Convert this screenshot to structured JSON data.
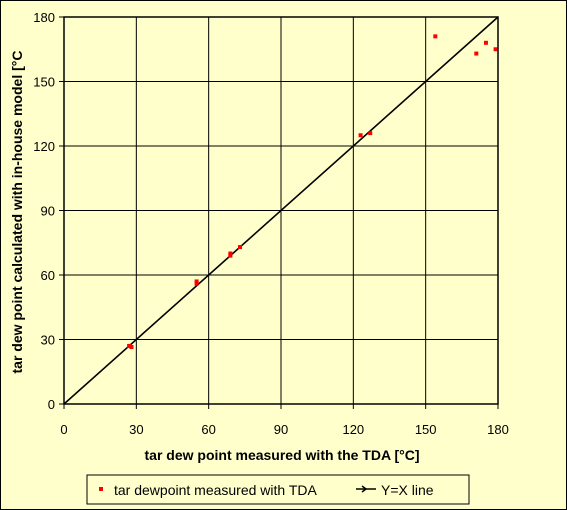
{
  "chart_data": {
    "type": "scatter",
    "xlabel": "tar dew point measured with the TDA [°C]",
    "ylabel": "tar dew point calculated with in-house model [°C",
    "xlim": [
      0,
      180
    ],
    "ylim": [
      0,
      180
    ],
    "x_ticks": [
      "0",
      "30",
      "60",
      "90",
      "120",
      "150",
      "180"
    ],
    "y_ticks": [
      "0",
      "30",
      "60",
      "90",
      "120",
      "150",
      "180"
    ],
    "grid": true,
    "legend_position": "bottom",
    "series": [
      {
        "name": "tar dewpoint measured with TDA",
        "type": "scatter",
        "color": "#ff0000",
        "points": [
          {
            "x": 27,
            "y": 27
          },
          {
            "x": 28,
            "y": 26.5
          },
          {
            "x": 55,
            "y": 57
          },
          {
            "x": 55,
            "y": 56
          },
          {
            "x": 69,
            "y": 69
          },
          {
            "x": 69,
            "y": 70
          },
          {
            "x": 73,
            "y": 73
          },
          {
            "x": 123,
            "y": 125
          },
          {
            "x": 127,
            "y": 126
          },
          {
            "x": 154,
            "y": 171
          },
          {
            "x": 171,
            "y": 163
          },
          {
            "x": 175,
            "y": 168
          },
          {
            "x": 179,
            "y": 165
          }
        ]
      },
      {
        "name": "Y=X line",
        "type": "line",
        "color": "#000000",
        "points": [
          {
            "x": 0,
            "y": 0
          },
          {
            "x": 180,
            "y": 180
          }
        ]
      }
    ]
  }
}
